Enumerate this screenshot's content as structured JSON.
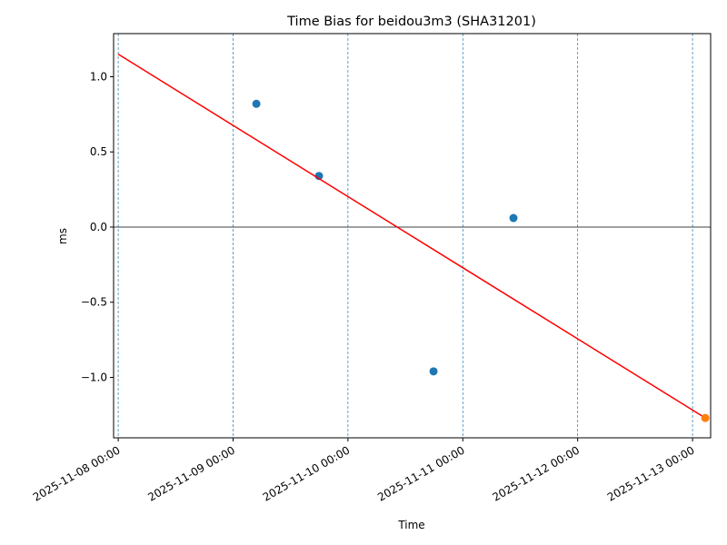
{
  "chart_data": {
    "type": "scatter",
    "title": "Time Bias for beidou3m3 (SHA31201)",
    "x_label": "Time",
    "y_label": "ms",
    "xlim": [
      "2025-11-07 23:02",
      "2025-11-13 03:47"
    ],
    "xticks": [
      "2025-11-08 00:00",
      "2025-11-09 00:00",
      "2025-11-10 00:00",
      "2025-11-11 00:00",
      "2025-11-12 00:00",
      "2025-11-13 00:00"
    ],
    "ylim": [
      -1.402,
      1.287
    ],
    "yticks": [
      {
        "value": -1,
        "label": "−1.0"
      },
      {
        "value": -0.5,
        "label": "−0.5"
      },
      {
        "value": 0,
        "label": "0.0"
      },
      {
        "value": 0.5,
        "label": "0.5"
      },
      {
        "value": 1,
        "label": "1.0"
      }
    ],
    "hline": 0,
    "x_grid": true,
    "series": [
      {
        "type": "scatter",
        "color": "#1f77b4",
        "x": [
          "2025-11-09 04:52",
          "2025-11-09 17:57",
          "2025-11-10 17:53",
          "2025-11-11 10:35"
        ],
        "values": [
          0.82,
          0.34,
          -0.96,
          0.06
        ]
      },
      {
        "type": "line",
        "color": "#ff0000",
        "x": [
          "2025-11-08 00:00",
          "2025-11-13 02:40"
        ],
        "values": [
          1.15,
          -1.27
        ]
      },
      {
        "type": "scatter",
        "color": "#ff7f0e",
        "x": [
          "2025-11-13 02:40"
        ],
        "values": [
          -1.27
        ]
      }
    ]
  }
}
